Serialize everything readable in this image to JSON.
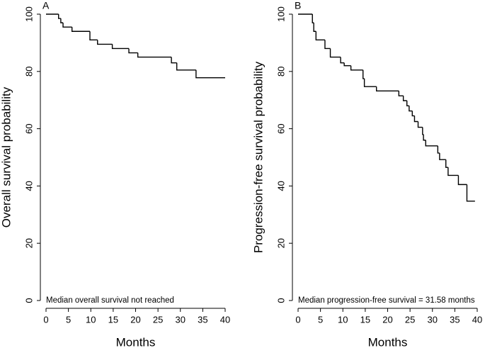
{
  "chart_data": [
    {
      "type": "step",
      "panel": "A",
      "ylabel": "Overall survival probability",
      "xlabel": "Months",
      "annotation": "Median overall survival not reached",
      "x": [
        0,
        2.8,
        3.3,
        3.8,
        5.8,
        9.8,
        11.5,
        14.8,
        18.5,
        20.5,
        28,
        29.2,
        33.5,
        40
      ],
      "values": [
        100,
        98.5,
        97,
        95.5,
        94,
        91,
        89.5,
        88,
        86.5,
        85,
        83,
        80.5,
        77.8,
        77.8
      ],
      "color": "#000000",
      "xlim": [
        0,
        40
      ],
      "ylim": [
        0,
        100
      ],
      "xticks": [
        0,
        5,
        10,
        15,
        20,
        25,
        30,
        35,
        40
      ],
      "yticks": [
        0,
        20,
        40,
        60,
        80,
        100
      ]
    },
    {
      "type": "step",
      "panel": "B",
      "ylabel": "Progression-free survival probability",
      "xlabel": "Months",
      "annotation": "Median progression-free survival = 31.58 months",
      "x": [
        0,
        3.2,
        3.5,
        4,
        6,
        7.2,
        9.5,
        10.3,
        11.8,
        14.5,
        14.8,
        17.5,
        22.5,
        23.5,
        24.3,
        24.8,
        25.5,
        26,
        26.8,
        27.8,
        28,
        28.5,
        31.2,
        31.6,
        33,
        33.5,
        35.8,
        37.7,
        39.5
      ],
      "values": [
        100,
        97,
        94,
        91,
        88,
        85,
        83,
        82,
        80.5,
        77.5,
        74.7,
        73.2,
        71.5,
        69.8,
        68,
        66.2,
        64.5,
        62.5,
        60.5,
        58,
        56,
        54,
        51.5,
        49.2,
        46.5,
        43.7,
        40.5,
        34.7,
        34.7
      ],
      "color": "#000000",
      "xlim": [
        0,
        40
      ],
      "ylim": [
        0,
        100
      ],
      "xticks": [
        0,
        5,
        10,
        15,
        20,
        25,
        30,
        35,
        40
      ],
      "yticks": [
        0,
        20,
        40,
        60,
        80,
        100
      ]
    }
  ]
}
